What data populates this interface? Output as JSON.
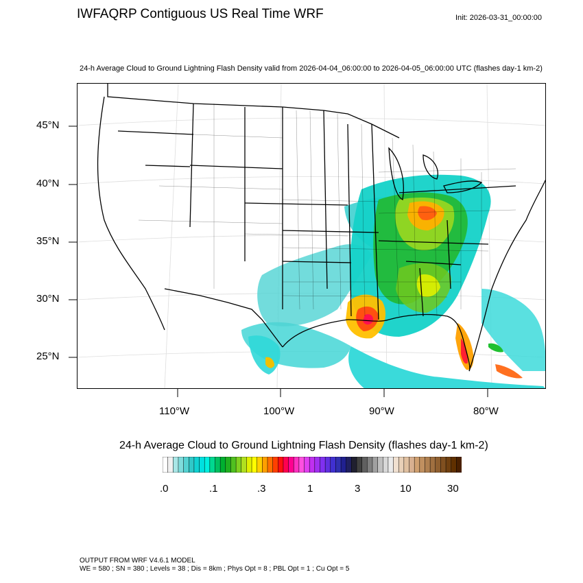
{
  "header": {
    "title": "IWFAQRP Contiguous US Real Time WRF",
    "init": "Init: 2026-03-31_00:00:00",
    "subtitle": "24-h Average Cloud to Ground Lightning Flash Density valid from 2026-04-04_06:00:00 to 2026-04-05_06:00:00 UTC   (flashes day-1 km-2)"
  },
  "map": {
    "lat_labels": [
      "45°N",
      "40°N",
      "35°N",
      "30°N",
      "25°N"
    ],
    "lon_labels": [
      "110°W",
      "100°W",
      "90°W",
      "80°W"
    ]
  },
  "colorbar": {
    "title": "24-h Average Cloud to Ground Lightning Flash Density  (flashes day-1 km-2)",
    "tick_labels": [
      ".0",
      ".1",
      ".3",
      "1",
      "3",
      "10",
      "30"
    ],
    "colors": [
      "#ffffff",
      "#f0f0f0",
      "#a8e6e6",
      "#7fdcdc",
      "#55d2d2",
      "#30c8c8",
      "#10d2d2",
      "#00e0e0",
      "#00f0e0",
      "#00d890",
      "#00c060",
      "#00b030",
      "#20b020",
      "#50c020",
      "#80d020",
      "#b0e020",
      "#e0f000",
      "#ffff00",
      "#ffd000",
      "#ffa000",
      "#ff7000",
      "#ff4000",
      "#ff1010",
      "#ff0050",
      "#ff0090",
      "#ff30c0",
      "#ff50e0",
      "#e040f0",
      "#c030f0",
      "#a030f0",
      "#8030f0",
      "#6030e0",
      "#4030d0",
      "#3030b0",
      "#202090",
      "#202060",
      "#202030",
      "#404040",
      "#606060",
      "#808080",
      "#a0a0a0",
      "#c0c0c0",
      "#d8d8d8",
      "#eaeaea",
      "#f0e0d0",
      "#e8d0b8",
      "#e0c0a0",
      "#d8b090",
      "#d0a070",
      "#c09060",
      "#b08050",
      "#a07040",
      "#906030",
      "#805020",
      "#704010",
      "#603000",
      "#4a2000"
    ]
  },
  "footer": {
    "line1": "OUTPUT FROM WRF V4.6.1 MODEL",
    "line2": "WE = 580 ; SN = 380 ; Levels = 38 ; Dis = 8km ; Phys Opt = 8 ; PBL Opt = 1 ; Cu Opt = 5"
  }
}
